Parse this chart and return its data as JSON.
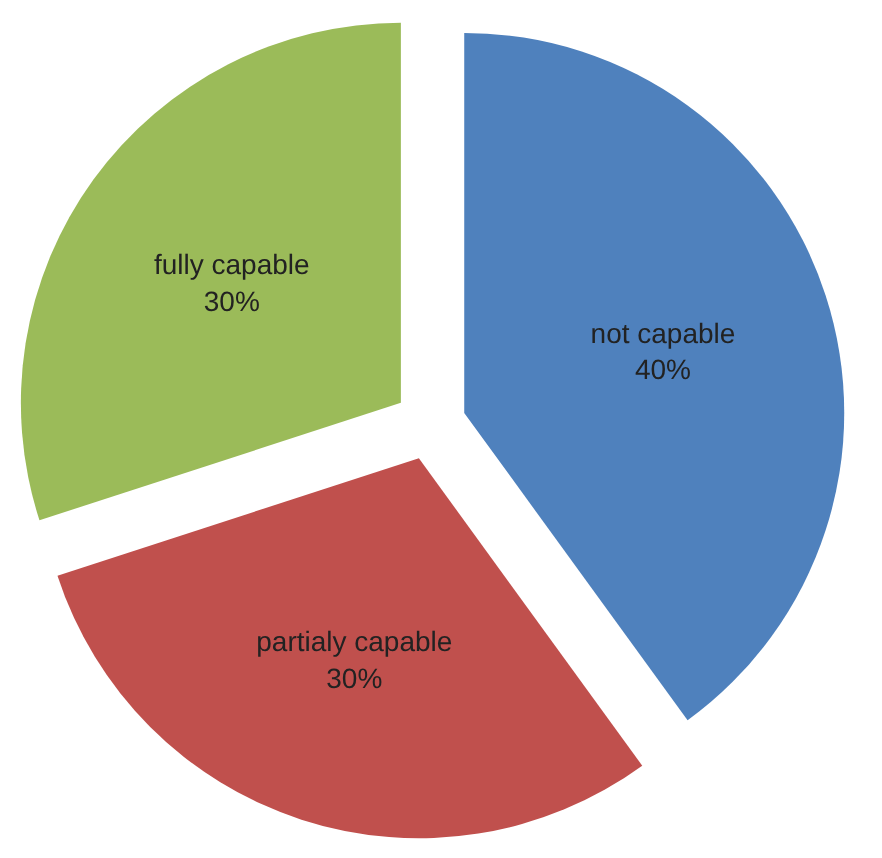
{
  "chart_data": {
    "type": "pie",
    "categories": [
      "not capable",
      "partialy capable",
      "fully capable"
    ],
    "values": [
      40,
      30,
      30
    ],
    "value_labels": [
      "40%",
      "30%",
      "30%"
    ],
    "colors": [
      "#4f81bd",
      "#c0504d",
      "#9bbb59"
    ]
  }
}
